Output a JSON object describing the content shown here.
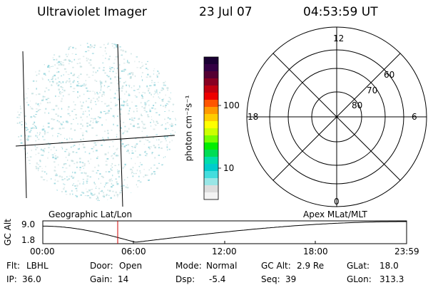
{
  "header": {
    "instrument": "Ultraviolet Imager",
    "date": "23 Jul 07",
    "time": "04:53:59 UT"
  },
  "colorbar": {
    "label": "photon cm⁻²s⁻¹",
    "ticks": [
      "100",
      "10"
    ],
    "colors": [
      "#1a0033",
      "#330044",
      "#550033",
      "#880022",
      "#c00010",
      "#ee0000",
      "#ff5500",
      "#ff9900",
      "#ffcc00",
      "#ffff00",
      "#ccff00",
      "#77ff00",
      "#00ee00",
      "#00dd55",
      "#00ddaa",
      "#00cccc",
      "#44dddd",
      "#99e6e6",
      "#dddddd",
      "#f4f4f4"
    ]
  },
  "polar": {
    "top_label": "12",
    "left_label": "18",
    "right_label": "6",
    "bottom_label": "0",
    "ring_labels": [
      "60",
      "70",
      "80"
    ]
  },
  "altitude_plot": {
    "left_title": "Geographic Lat/Lon",
    "right_title": "Apex MLat/MLT",
    "ylabel": "GC Alt",
    "y_ticks": [
      "9.0",
      "1.8"
    ],
    "x_ticks": [
      "00:00",
      "06:00",
      "12:00",
      "18:00",
      "23:59"
    ],
    "marker_color": "#cc0000"
  },
  "footer": {
    "row1": [
      {
        "label": "Flt:",
        "value": "LBHL"
      },
      {
        "label": "Door:",
        "value": "Open"
      },
      {
        "label": "Mode:",
        "value": "Normal"
      },
      {
        "label": "GC Alt:",
        "value": "2.9 Re"
      },
      {
        "label": "GLat:",
        "value": "18.0"
      }
    ],
    "row2": [
      {
        "label": "IP:",
        "value": "36.0"
      },
      {
        "label": "Gain:",
        "value": "14"
      },
      {
        "label": "Dsp:",
        "value": "-5.4"
      },
      {
        "label": "Seq:",
        "value": "39"
      },
      {
        "label": "GLon:",
        "value": "313.3"
      }
    ]
  }
}
